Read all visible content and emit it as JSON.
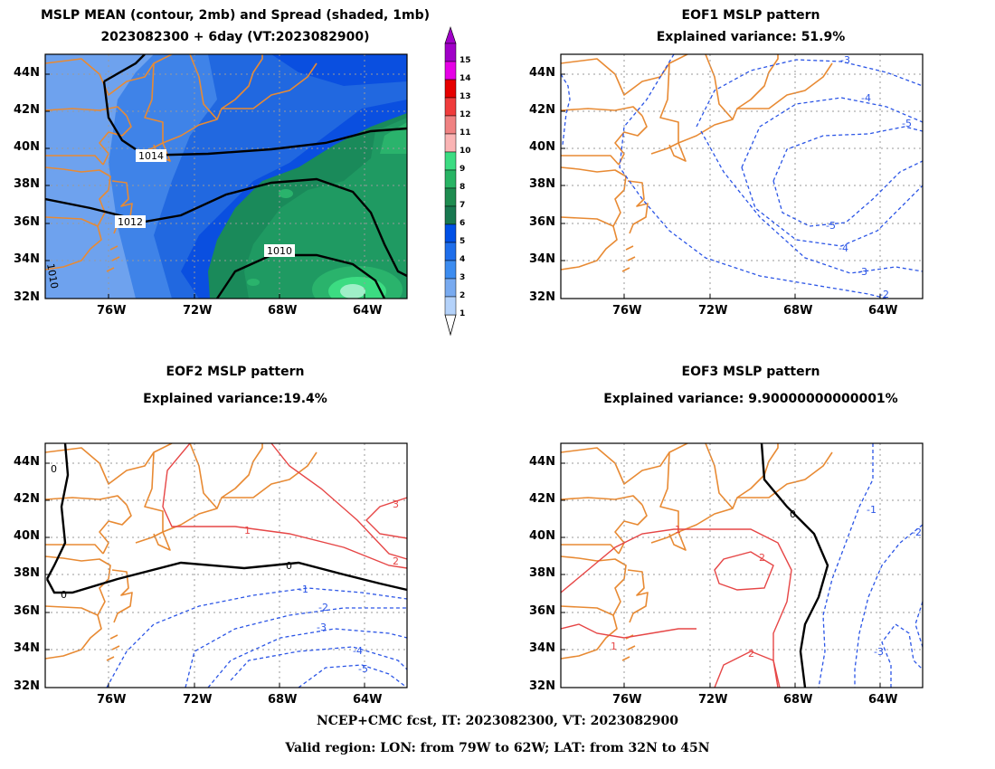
{
  "footer": {
    "line1": "NCEP+CMC fcst, IT: 2023082300, VT: 2023082900",
    "line2": "Valid region: LON: from 79W to 62W; LAT: from 32N to 45N"
  },
  "lat_ticks": [
    "44N",
    "42N",
    "40N",
    "38N",
    "36N",
    "34N",
    "32N"
  ],
  "lon_ticks": [
    "76W",
    "72W",
    "68W",
    "64W"
  ],
  "colorbar": {
    "labels": [
      "15",
      "14",
      "13",
      "12",
      "11",
      "10",
      "9",
      "8",
      "7",
      "6",
      "5",
      "4",
      "3",
      "2",
      "1"
    ],
    "colors": [
      "#a000c8",
      "#e600e6",
      "#e60000",
      "#f03c3c",
      "#f08282",
      "#fab4b4",
      "#3cdc82",
      "#28b464",
      "#1e8c50",
      "#187850",
      "#0050e6",
      "#1e6eeb",
      "#3c8cf0",
      "#78aaf0",
      "#b4d2fa"
    ]
  },
  "panels": [
    {
      "id": "mean-spread",
      "title1": "MSLP MEAN (contour, 2mb) and Spread (shaded, 1mb)",
      "title2": "2023082300 + 6day (VT:2023082900)",
      "contour_labels": [
        "1014",
        "1012",
        "1010",
        "1010"
      ]
    },
    {
      "id": "eof1",
      "title1": "EOF1 MSLP pattern",
      "title2": "Explained variance: 51.9%",
      "contour_labels": [
        "-3",
        "-4",
        "-5",
        "-5",
        "-4",
        "-3",
        "-2"
      ]
    },
    {
      "id": "eof2",
      "title1": "EOF2 MSLP pattern",
      "title2": "Explained variance:19.4%",
      "contour_labels": [
        "0",
        "0",
        "0",
        "1",
        "2",
        "3",
        "-1",
        "-2",
        "-3",
        "-4",
        "-5"
      ]
    },
    {
      "id": "eof3",
      "title1": "EOF3 MSLP pattern",
      "title2": "Explained variance: 9.90000000000001%",
      "contour_labels": [
        "0",
        "1",
        "2",
        "1",
        "2",
        "-1",
        "-2",
        "-3"
      ]
    }
  ]
}
